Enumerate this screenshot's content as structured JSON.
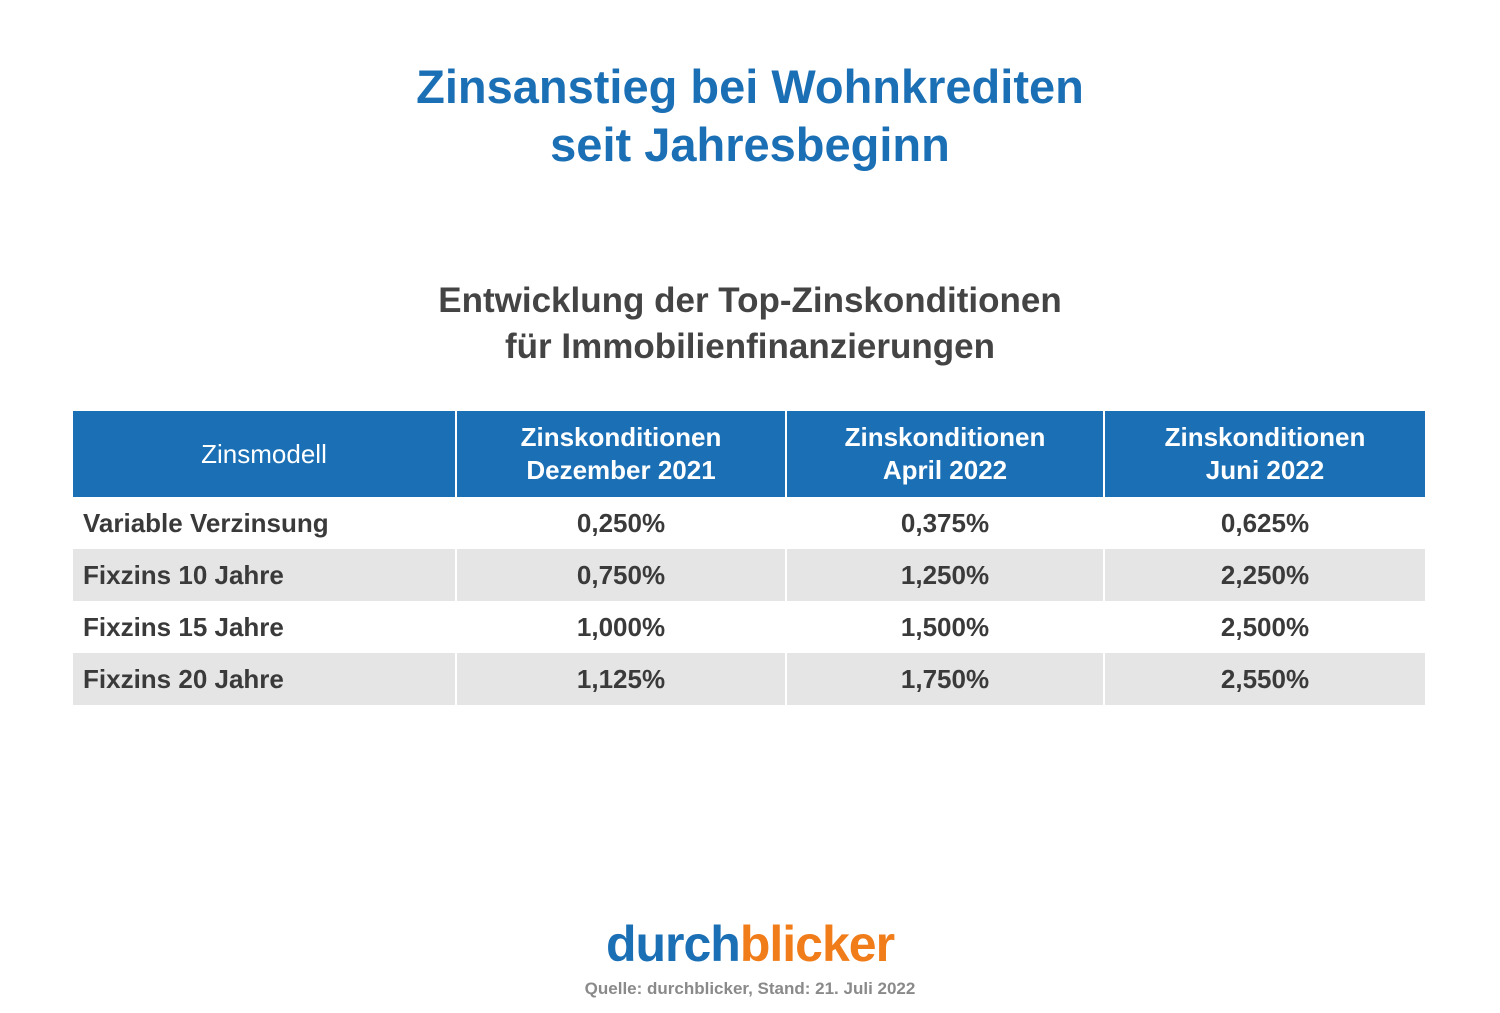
{
  "title": {
    "line1": "Zinsanstieg bei Wohnkrediten",
    "line2": "seit Jahresbeginn"
  },
  "subtitle": {
    "line1": "Entwicklung der Top-Zinskonditionen",
    "line2": "für Immobilienfinanzierungen"
  },
  "colors": {
    "accent": "#1a6fb5",
    "logo_orange": "#f07d1a",
    "row_alt": "#e5e5e5"
  },
  "chart_data": {
    "type": "table",
    "columns": [
      {
        "line1": "Zinsmodell",
        "line2": ""
      },
      {
        "line1": "Zinskonditionen",
        "line2": "Dezember 2021"
      },
      {
        "line1": "Zinskonditionen",
        "line2": "April 2022"
      },
      {
        "line1": "Zinskonditionen",
        "line2": "Juni 2022"
      }
    ],
    "rows": [
      [
        "Variable Verzinsung",
        "0,250%",
        "0,375%",
        "0,625%"
      ],
      [
        "Fixzins 10 Jahre",
        "0,750%",
        "1,250%",
        "2,250%"
      ],
      [
        "Fixzins 15 Jahre",
        "1,000%",
        "1,500%",
        "2,500%"
      ],
      [
        "Fixzins 20 Jahre",
        "1,125%",
        "1,750%",
        "2,550%"
      ]
    ]
  },
  "logo": {
    "part1": "durch",
    "part2": "blicker"
  },
  "source": "Quelle: durchblicker, Stand: 21. Juli 2022"
}
